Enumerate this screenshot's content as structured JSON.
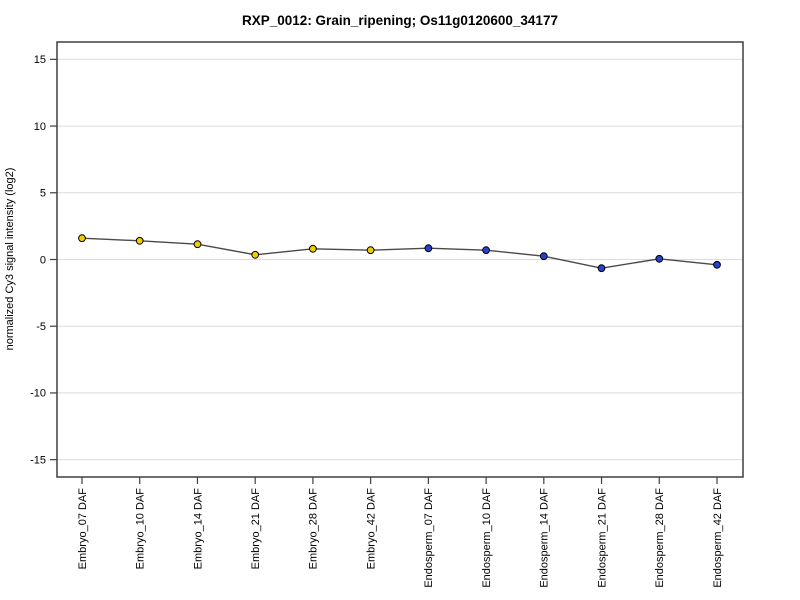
{
  "chart_data": {
    "type": "line",
    "title": "RXP_0012: Grain_ripening; Os11g0120600_34177",
    "xlabel": "",
    "ylabel": "normalized Cy3 signal intensity (log2)",
    "categories": [
      "Embryo_07 DAF",
      "Embryo_10 DAF",
      "Embryo_14 DAF",
      "Embryo_21 DAF",
      "Embryo_28 DAF",
      "Embryo_42 DAF",
      "Endosperm_07 DAF",
      "Endosperm_10 DAF",
      "Endosperm_14 DAF",
      "Endosperm_21 DAF",
      "Endosperm_28 DAF",
      "Endosperm_42 DAF"
    ],
    "series": [
      {
        "name": "normalized Cy3 signal intensity",
        "values": [
          1.6,
          1.4,
          1.15,
          0.35,
          0.8,
          0.7,
          0.85,
          0.7,
          0.25,
          -0.65,
          0.05,
          -0.4
        ],
        "point_groups": [
          "Embryo",
          "Embryo",
          "Embryo",
          "Embryo",
          "Embryo",
          "Embryo",
          "Endosperm",
          "Endosperm",
          "Endosperm",
          "Endosperm",
          "Endosperm",
          "Endosperm"
        ]
      }
    ],
    "yticks": [
      15,
      10,
      5,
      0,
      -5,
      -10,
      -15
    ],
    "ylim": [
      -16.3,
      16.3
    ],
    "grid": "horizontal-only",
    "legend": "none",
    "colors": {
      "embryo_point_fill": "#F0CD00",
      "endosperm_point_fill": "#2442CC",
      "point_border": "#000000",
      "line": "#4A4A4A",
      "grid_line": "#DCDCDC",
      "axis_box": "#3F3F3F",
      "text": "#000000",
      "background": "#FFFFFF"
    }
  }
}
